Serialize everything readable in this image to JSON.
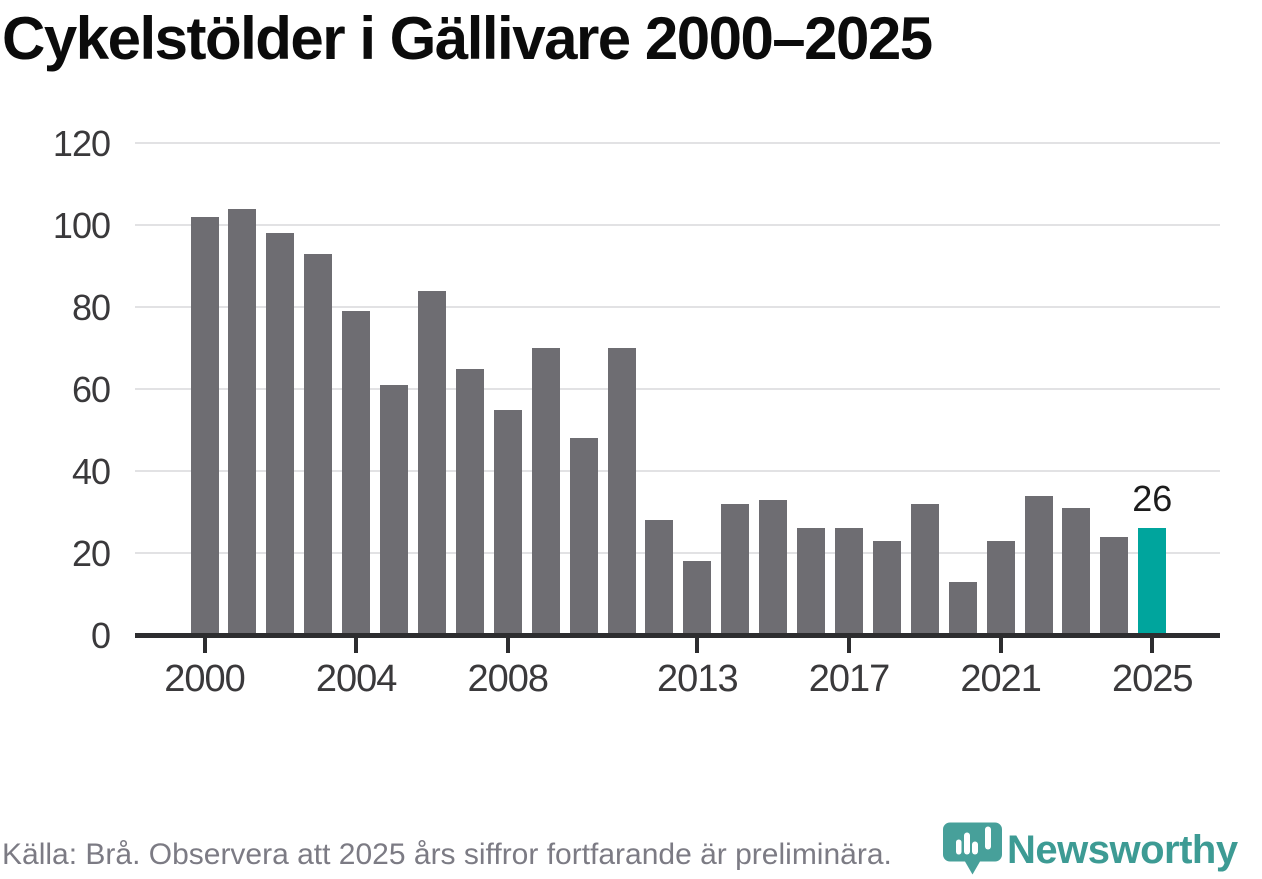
{
  "title": "Cykelstölder i Gällivare 2000–2025",
  "chart_data": {
    "type": "bar",
    "title": "Cykelstölder i Gällivare 2000–2025",
    "categories": [
      "2000",
      "2001",
      "2002",
      "2003",
      "2004",
      "2005",
      "2006",
      "2007",
      "2008",
      "2009",
      "2010",
      "2011",
      "2012",
      "2013",
      "2014",
      "2015",
      "2016",
      "2017",
      "2018",
      "2019",
      "2020",
      "2021",
      "2022",
      "2023",
      "2024",
      "2025"
    ],
    "values": [
      102,
      104,
      98,
      93,
      79,
      61,
      84,
      65,
      55,
      70,
      48,
      70,
      28,
      18,
      32,
      33,
      26,
      26,
      23,
      32,
      13,
      23,
      34,
      31,
      24,
      26
    ],
    "xlabel": "",
    "ylabel": "",
    "ylim": [
      0,
      120
    ],
    "y_ticks": [
      0,
      20,
      40,
      60,
      80,
      100,
      120
    ],
    "x_tick_labels": [
      "2000",
      "2004",
      "2008",
      "2013",
      "2017",
      "2021",
      "2025"
    ],
    "grid": true,
    "legend_position": "none",
    "highlight_category": "2025",
    "annotation": {
      "text": "26",
      "category": "2025"
    }
  },
  "colors": {
    "bar": "#6e6d72",
    "highlight_bar": "#00a59d",
    "axis": "#2d2d2f",
    "gridline": "#e2e2e4",
    "tick_label": "#3a393b",
    "title_text": "#0b0b0b",
    "annotation_text": "#1c1c1c",
    "footer_text": "#7c7b84",
    "brand_teal": "#3d9b94",
    "brand_icon_teal": "#47a09a"
  },
  "footer": {
    "source_note": "Källa: Brå. Observera att 2025 års siffror fortfarande är preliminära."
  },
  "brand": {
    "name": "Newsworthy"
  }
}
